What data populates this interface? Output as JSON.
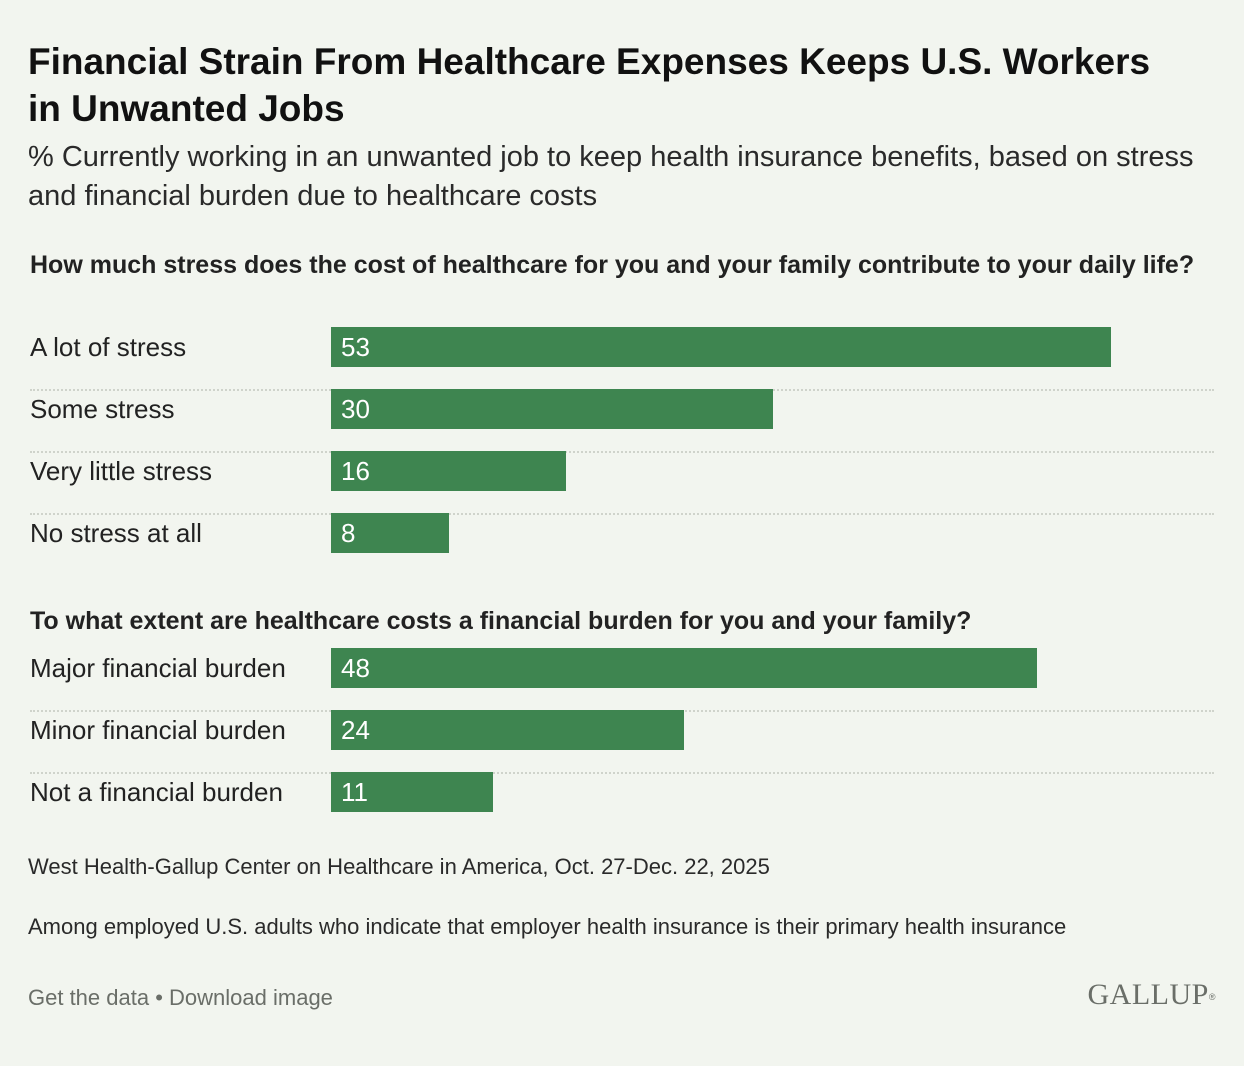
{
  "header": {
    "title": "Financial Strain From Healthcare Expenses Keeps U.S. Workers in Unwanted Jobs",
    "subtitle": "% Currently working in an unwanted job to keep health insurance benefits, based on stress and financial burden due to healthcare costs"
  },
  "chart_data": [
    {
      "type": "bar",
      "orientation": "horizontal",
      "title": "How much stress does the cost of healthcare for you and your family contribute to your daily life?",
      "categories": [
        "A lot of stress",
        "Some stress",
        "Very little stress",
        "No stress at all"
      ],
      "values": [
        53,
        30,
        16,
        8
      ],
      "xlim": [
        0,
        53
      ],
      "grid": false,
      "bar_color": "#3e8550"
    },
    {
      "type": "bar",
      "orientation": "horizontal",
      "title": "To what extent are healthcare costs a financial burden for you and your family?",
      "categories": [
        "Major financial burden",
        "Minor financial burden",
        "Not a financial burden"
      ],
      "values": [
        48,
        24,
        11
      ],
      "xlim": [
        0,
        53
      ],
      "grid": false,
      "bar_color": "#3e8550"
    }
  ],
  "notes": {
    "source": "West Health-Gallup Center on Healthcare in America, Oct. 27-Dec. 22, 2025",
    "population": "Among employed U.S. adults who indicate that employer health insurance is their primary health insurance"
  },
  "footer": {
    "get_data": "Get the data",
    "separator": "•",
    "download": "Download image",
    "logo": "GALLUP",
    "logo_mark": "®"
  },
  "colors": {
    "background": "#f2f5ef",
    "bar": "#3e8550",
    "muted_text": "#6a6e68"
  }
}
